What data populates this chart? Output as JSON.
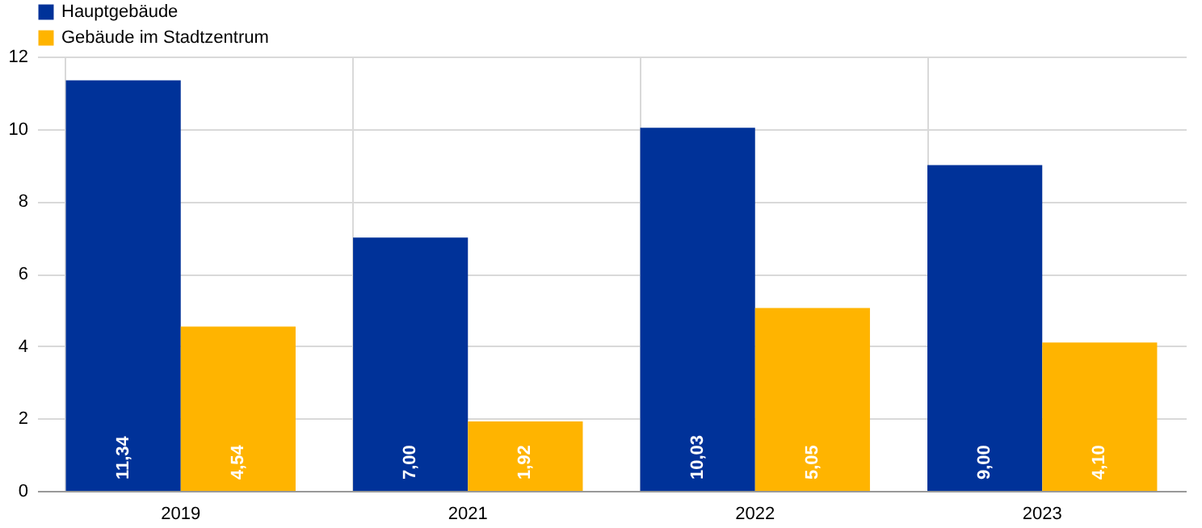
{
  "chart_data": {
    "type": "bar",
    "categories": [
      "2019",
      "2021",
      "2022",
      "2023"
    ],
    "series": [
      {
        "name": "Hauptgebäude",
        "color": "#003299",
        "values": [
          11.34,
          7.0,
          10.03,
          9.0
        ],
        "value_labels": [
          "11,34",
          "7,00",
          "10,03",
          "9,00"
        ]
      },
      {
        "name": "Gebäude im Stadtzentrum",
        "color": "#ffb400",
        "values": [
          4.54,
          1.92,
          5.05,
          4.1
        ],
        "value_labels": [
          "4,54",
          "1,92",
          "5,05",
          "4,10"
        ]
      }
    ],
    "ylim": [
      0,
      12
    ],
    "yticks": [
      0,
      2,
      4,
      6,
      8,
      10,
      12
    ],
    "grid": true,
    "legend": "top left"
  }
}
